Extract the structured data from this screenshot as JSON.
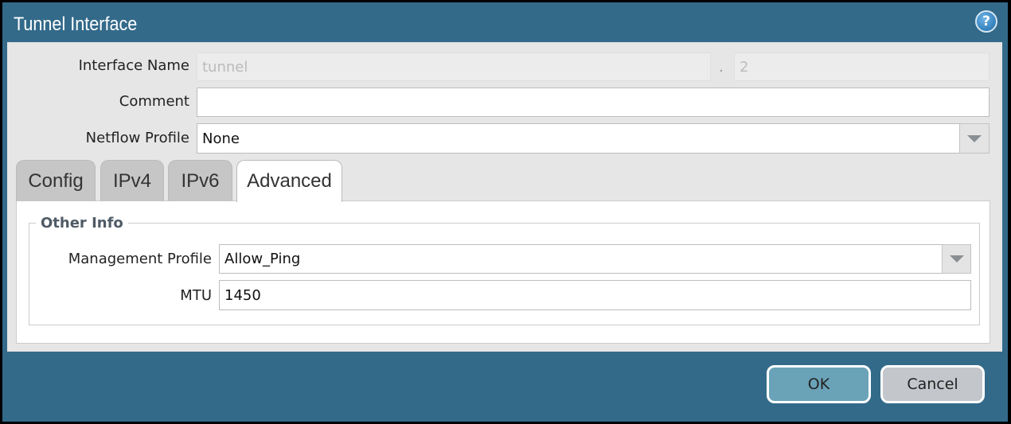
{
  "dialog": {
    "title": "Tunnel Interface",
    "help_icon": "question-circle-icon"
  },
  "fields": {
    "interface_name": {
      "label": "Interface Name",
      "value": "tunnel",
      "suffix_sep": ".",
      "suffix": "2"
    },
    "comment": {
      "label": "Comment",
      "value": ""
    },
    "netflow_profile": {
      "label": "Netflow Profile",
      "value": "None"
    }
  },
  "tabs": [
    {
      "label": "Config"
    },
    {
      "label": "IPv4"
    },
    {
      "label": "IPv6"
    },
    {
      "label": "Advanced",
      "active": true
    }
  ],
  "advanced": {
    "group_title": "Other Info",
    "management_profile": {
      "label": "Management Profile",
      "value": "Allow_Ping"
    },
    "mtu": {
      "label": "MTU",
      "value": "1450"
    }
  },
  "buttons": {
    "ok": "OK",
    "cancel": "Cancel"
  },
  "colors": {
    "frame": "#336a8a",
    "ok": "#6aa3b8",
    "cancel": "#c3c7cb"
  }
}
